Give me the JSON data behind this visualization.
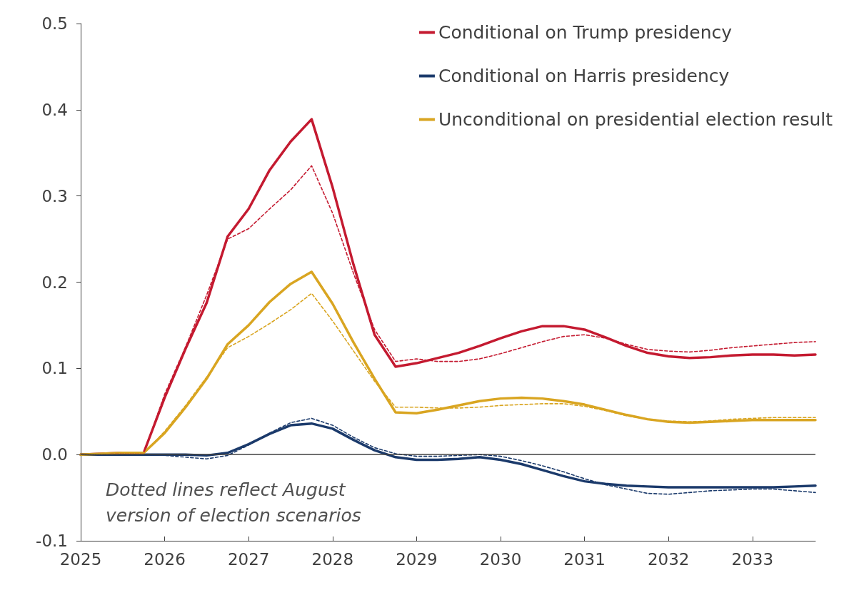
{
  "chart_data": {
    "type": "line",
    "x": [
      2025,
      2025.25,
      2025.5,
      2025.75,
      2026,
      2026.25,
      2026.5,
      2026.75,
      2027,
      2027.25,
      2027.5,
      2027.75,
      2028,
      2028.25,
      2028.5,
      2028.75,
      2029,
      2029.25,
      2029.5,
      2029.75,
      2030,
      2030.25,
      2030.5,
      2030.75,
      2031,
      2031.25,
      2031.5,
      2031.75,
      2032,
      2032.25,
      2032.5,
      2032.75,
      2033,
      2033.25,
      2033.5,
      2033.75
    ],
    "series": [
      {
        "name": "Conditional on Trump presidency",
        "color": "#c41a30",
        "values": [
          0,
          0.001,
          0.002,
          0.002,
          0.066,
          0.123,
          0.176,
          0.253,
          0.285,
          0.33,
          0.363,
          0.389,
          0.31,
          0.22,
          0.139,
          0.102,
          0.106,
          0.112,
          0.118,
          0.126,
          0.135,
          0.143,
          0.149,
          0.149,
          0.145,
          0.136,
          0.126,
          0.118,
          0.114,
          0.112,
          0.113,
          0.115,
          0.116,
          0.116,
          0.115,
          0.116
        ]
      },
      {
        "name": "Conditional on Harris presidency",
        "color": "#1b3a6b",
        "values": [
          0,
          0,
          0,
          0,
          0,
          0,
          -0.001,
          0.002,
          0.012,
          0.024,
          0.034,
          0.036,
          0.03,
          0.017,
          0.005,
          -0.003,
          -0.006,
          -0.006,
          -0.005,
          -0.003,
          -0.006,
          -0.011,
          -0.018,
          -0.025,
          -0.031,
          -0.034,
          -0.036,
          -0.037,
          -0.038,
          -0.038,
          -0.038,
          -0.038,
          -0.038,
          -0.038,
          -0.037,
          -0.036
        ]
      },
      {
        "name": "Unconditional on presidential election result",
        "color": "#d9a521",
        "values": [
          0,
          0.001,
          0.002,
          0.002,
          0.025,
          0.055,
          0.088,
          0.128,
          0.15,
          0.177,
          0.198,
          0.212,
          0.175,
          0.13,
          0.088,
          0.049,
          0.048,
          0.052,
          0.057,
          0.062,
          0.065,
          0.066,
          0.065,
          0.062,
          0.058,
          0.052,
          0.046,
          0.041,
          0.038,
          0.037,
          0.038,
          0.039,
          0.04,
          0.04,
          0.04,
          0.04
        ]
      },
      {
        "color": "#c41a30",
        "line_style": "dashed",
        "values": [
          0,
          0,
          0.001,
          0.001,
          0.07,
          0.125,
          0.185,
          0.25,
          0.262,
          0.285,
          0.307,
          0.335,
          0.28,
          0.21,
          0.145,
          0.108,
          0.111,
          0.108,
          0.108,
          0.111,
          0.117,
          0.124,
          0.131,
          0.137,
          0.139,
          0.135,
          0.128,
          0.122,
          0.12,
          0.119,
          0.121,
          0.124,
          0.126,
          0.128,
          0.13,
          0.131
        ]
      },
      {
        "color": "#1b3a6b",
        "line_style": "dashed",
        "values": [
          0,
          0,
          0,
          0,
          -0.001,
          -0.003,
          -0.005,
          -0.001,
          0.011,
          0.025,
          0.037,
          0.042,
          0.034,
          0.02,
          0.008,
          0.001,
          -0.002,
          -0.002,
          -0.001,
          0,
          -0.002,
          -0.007,
          -0.013,
          -0.02,
          -0.028,
          -0.035,
          -0.04,
          -0.045,
          -0.046,
          -0.044,
          -0.042,
          -0.041,
          -0.04,
          -0.04,
          -0.042,
          -0.044
        ]
      },
      {
        "color": "#d9a521",
        "line_style": "dashed",
        "values": [
          0,
          0,
          0.001,
          0.001,
          0.027,
          0.057,
          0.09,
          0.124,
          0.137,
          0.152,
          0.168,
          0.187,
          0.155,
          0.12,
          0.085,
          0.055,
          0.055,
          0.054,
          0.054,
          0.055,
          0.057,
          0.058,
          0.059,
          0.059,
          0.056,
          0.051,
          0.045,
          0.041,
          0.039,
          0.038,
          0.039,
          0.041,
          0.042,
          0.043,
          0.043,
          0.043
        ]
      }
    ],
    "xlim": [
      2025,
      2033.75
    ],
    "xticks": [
      2025,
      2026,
      2027,
      2028,
      2029,
      2030,
      2031,
      2032,
      2033
    ],
    "ylim": [
      -0.1,
      0.5
    ],
    "yticks": [
      -0.1,
      {
        "value": 0,
        "label": "0.0"
      },
      0.1,
      0.2,
      0.3,
      0.4,
      0.5
    ],
    "ref_lines": [
      {
        "axis": "y",
        "value": 0,
        "color": "#404040"
      }
    ],
    "grid": false,
    "legend": "top right",
    "marker": "none",
    "line_style": "solid",
    "annotations": [
      "Dotted lines reflect August\nversion of election scenarios"
    ]
  }
}
